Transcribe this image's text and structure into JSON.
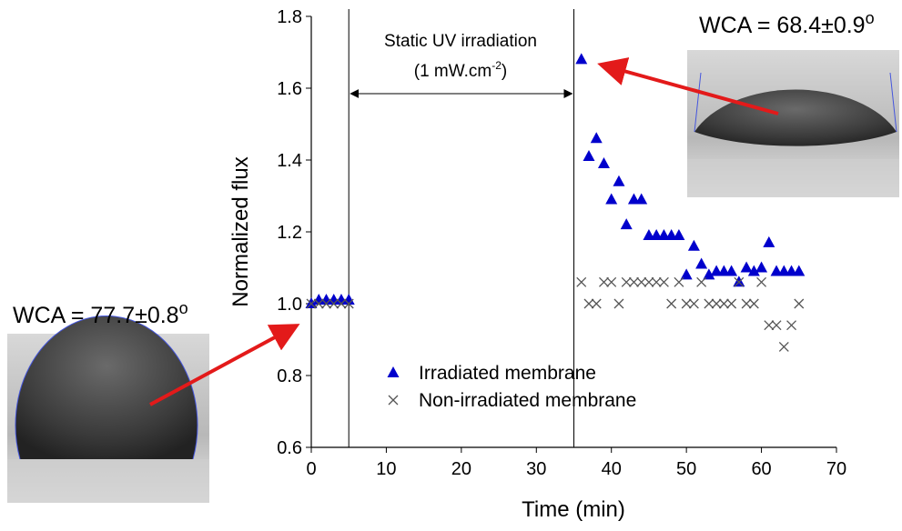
{
  "chart_data": {
    "type": "scatter",
    "x_label": "Time (min)",
    "y_label": "Normalized flux",
    "xlim": [
      0,
      70
    ],
    "xticks": [
      0,
      10,
      20,
      30,
      40,
      50,
      60,
      70
    ],
    "ylim": [
      0.6,
      1.8
    ],
    "yticks": [
      0.6,
      0.8,
      {
        "value": 1,
        "label": "1.0"
      },
      1.2,
      1.4,
      1.6,
      1.8
    ],
    "vlines": [
      5,
      35
    ],
    "annotation": {
      "line1": "Static UV irradiation",
      "line2": "(1 mW.cm",
      "line2_sup": "-2",
      "line2_end": ")"
    },
    "wca_before": {
      "text": "WCA = 77.7±0.8",
      "sup": "o"
    },
    "wca_after": {
      "text": "WCA = 68.4±0.9",
      "sup": "o"
    },
    "legend": "lower-left",
    "series": [
      {
        "name": "Irradiated membrane",
        "color": "#0000cc",
        "marker": "triangle",
        "x": [
          0,
          1,
          2,
          3,
          4,
          5,
          36,
          37,
          38,
          39,
          40,
          41,
          42,
          43,
          44,
          45,
          46,
          47,
          48,
          49,
          50,
          51,
          52,
          53,
          54,
          55,
          56,
          57,
          58,
          59,
          60,
          61,
          62,
          63,
          64,
          65
        ],
        "values": [
          1.0,
          1.01,
          1.01,
          1.01,
          1.01,
          1.01,
          1.68,
          1.41,
          1.46,
          1.39,
          1.29,
          1.34,
          1.22,
          1.29,
          1.29,
          1.19,
          1.19,
          1.19,
          1.19,
          1.19,
          1.08,
          1.16,
          1.11,
          1.08,
          1.09,
          1.09,
          1.09,
          1.06,
          1.1,
          1.09,
          1.1,
          1.17,
          1.09,
          1.09,
          1.09,
          1.09
        ]
      },
      {
        "name": "Non-irradiated membrane",
        "color": "#555555",
        "marker": "cross",
        "x": [
          0,
          1,
          2,
          3,
          4,
          5,
          36,
          37,
          38,
          39,
          40,
          41,
          42,
          43,
          44,
          45,
          46,
          47,
          48,
          49,
          50,
          51,
          52,
          53,
          54,
          55,
          56,
          57,
          58,
          59,
          60,
          61,
          62,
          63,
          64,
          65
        ],
        "values": [
          1.0,
          1.0,
          1.0,
          1.0,
          1.0,
          1.0,
          1.06,
          1.0,
          1.0,
          1.06,
          1.06,
          1.0,
          1.06,
          1.06,
          1.06,
          1.06,
          1.06,
          1.06,
          1.0,
          1.06,
          1.0,
          1.0,
          1.06,
          1.0,
          1.0,
          1.0,
          1.0,
          1.06,
          1.0,
          1.0,
          1.06,
          0.94,
          0.94,
          0.88,
          0.94,
          1.0
        ]
      }
    ]
  }
}
